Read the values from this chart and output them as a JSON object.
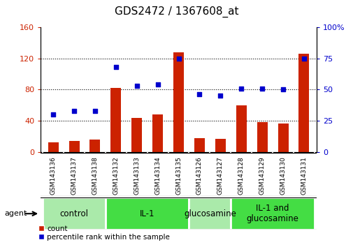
{
  "title": "GDS2472 / 1367608_at",
  "samples": [
    "GSM143136",
    "GSM143137",
    "GSM143138",
    "GSM143132",
    "GSM143133",
    "GSM143134",
    "GSM143135",
    "GSM143126",
    "GSM143127",
    "GSM143128",
    "GSM143129",
    "GSM143130",
    "GSM143131"
  ],
  "counts": [
    12,
    14,
    16,
    82,
    44,
    48,
    128,
    18,
    17,
    60,
    38,
    36,
    126
  ],
  "percentile": [
    30,
    33,
    33,
    68,
    53,
    54,
    75,
    46,
    45,
    51,
    51,
    50,
    75
  ],
  "groups": [
    {
      "label": "control",
      "start": 0,
      "end": 3,
      "color": "#aaeaaa"
    },
    {
      "label": "IL-1",
      "start": 3,
      "end": 7,
      "color": "#44dd44"
    },
    {
      "label": "glucosamine",
      "start": 7,
      "end": 9,
      "color": "#aaeaaa"
    },
    {
      "label": "IL-1 and\nglucosamine",
      "start": 9,
      "end": 13,
      "color": "#44dd44"
    }
  ],
  "ylim_left": [
    0,
    160
  ],
  "ylim_right": [
    0,
    100
  ],
  "yticks_left": [
    0,
    40,
    80,
    120,
    160
  ],
  "yticks_right": [
    0,
    25,
    50,
    75,
    100
  ],
  "bar_color": "#CC2200",
  "dot_color": "#0000CC",
  "bar_width": 0.5,
  "background_color": "#ffffff",
  "legend_count_label": "count",
  "legend_pct_label": "percentile rank within the sample",
  "agent_label": "agent",
  "title_fontsize": 11,
  "tick_fontsize": 8,
  "group_label_fontsize": 8.5,
  "sample_label_fontsize": 6.5,
  "legend_fontsize": 7.5
}
